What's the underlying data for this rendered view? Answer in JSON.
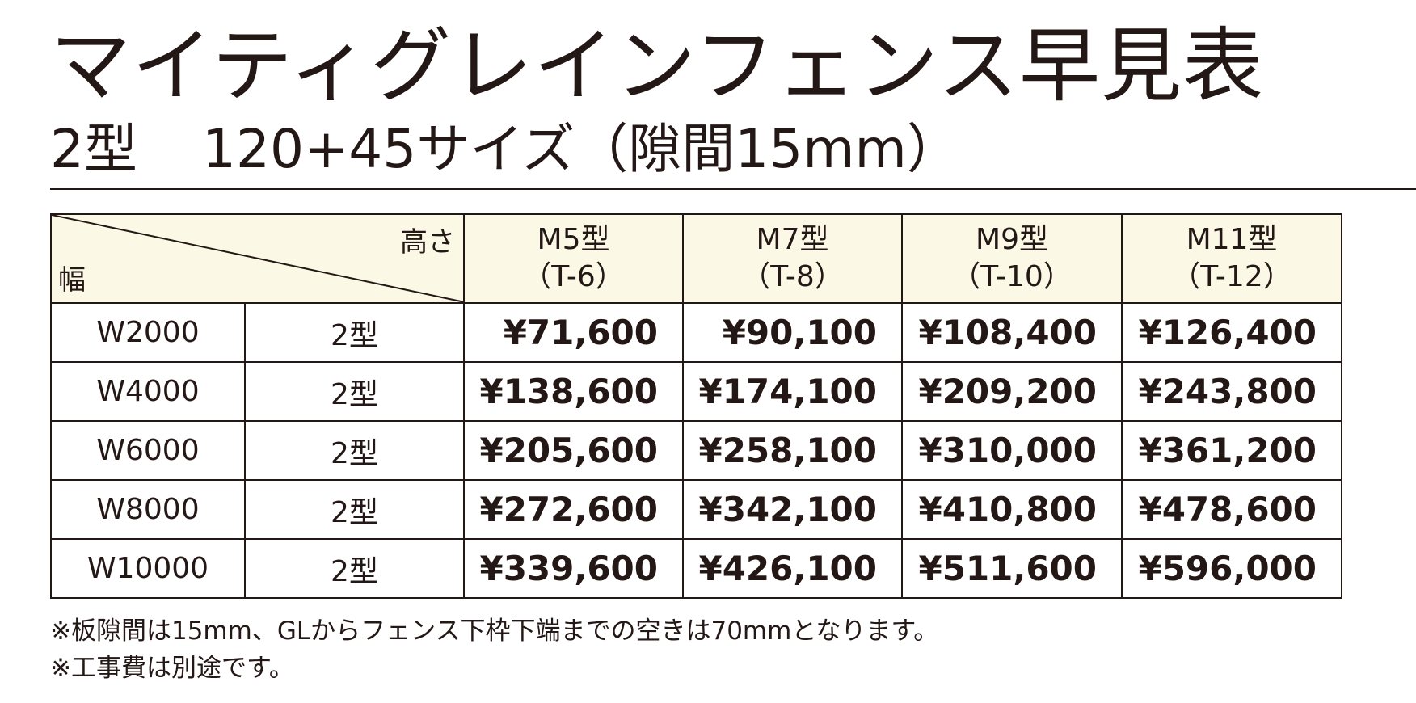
{
  "title": "マイティグレインフェンス早見表",
  "subtitle": {
    "type": "2型",
    "size": "120+45サイズ（隙間15mm）"
  },
  "table": {
    "corner_height_label": "高さ",
    "corner_width_label": "幅",
    "models": [
      {
        "name": "M5型",
        "code": "（T-6）"
      },
      {
        "name": "M7型",
        "code": "（T-8）"
      },
      {
        "name": "M9型",
        "code": "（T-10）"
      },
      {
        "name": "M11型",
        "code": "（T-12）"
      }
    ],
    "rows": [
      {
        "width": "W2000",
        "type": "2型",
        "prices": [
          "¥71,600",
          "¥90,100",
          "¥108,400",
          "¥126,400"
        ]
      },
      {
        "width": "W4000",
        "type": "2型",
        "prices": [
          "¥138,600",
          "¥174,100",
          "¥209,200",
          "¥243,800"
        ]
      },
      {
        "width": "W6000",
        "type": "2型",
        "prices": [
          "¥205,600",
          "¥258,100",
          "¥310,000",
          "¥361,200"
        ]
      },
      {
        "width": "W8000",
        "type": "2型",
        "prices": [
          "¥272,600",
          "¥342,100",
          "¥410,800",
          "¥478,600"
        ]
      },
      {
        "width": "W10000",
        "type": "2型",
        "prices": [
          "¥339,600",
          "¥426,100",
          "¥511,600",
          "¥596,000"
        ]
      }
    ]
  },
  "notes": [
    "※板隙間は15mm、GLからフェンス下枠下端までの空きは70mmとなります。",
    "※工事費は別途です。"
  ],
  "colors": {
    "text": "#231815",
    "header_background": "#fbf8e6",
    "border": "#231815"
  }
}
